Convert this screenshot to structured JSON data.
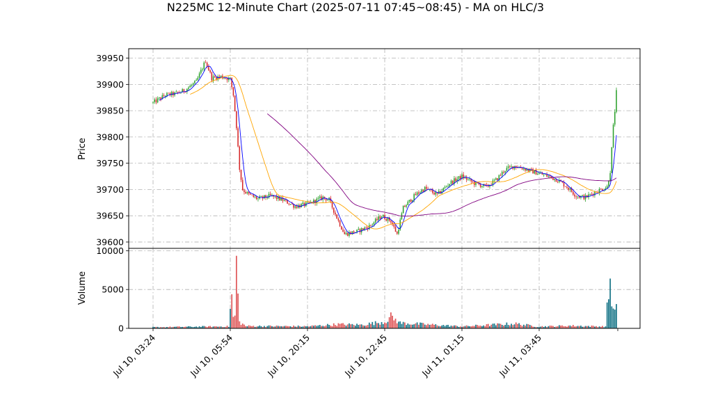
{
  "chart_data": {
    "type": "candlestick",
    "title": "N225MC 12-Minute Chart (2025-07-11 07:45~08:45) - MA on HLC/3",
    "price_panel": {
      "ylabel": "Price",
      "ylim": [
        39588,
        39968
      ],
      "yticks": [
        39600,
        39650,
        39700,
        39750,
        39800,
        39850,
        39900,
        39950
      ],
      "grid": true
    },
    "volume_panel": {
      "ylabel": "Volume",
      "ylim": [
        0,
        10300
      ],
      "yticks": [
        0,
        5000,
        10000
      ],
      "grid": true
    },
    "x_ticks": [
      {
        "index": 0,
        "label": "Jul 10, 03:24"
      },
      {
        "index": 50,
        "label": "Jul 10, 05:54"
      },
      {
        "index": 100,
        "label": "Jul 10, 20:15"
      },
      {
        "index": 150,
        "label": "Jul 10, 22:45"
      },
      {
        "index": 200,
        "label": "Jul 11, 01:15"
      },
      {
        "index": 250,
        "label": "Jul 11, 03:45"
      }
    ],
    "bar_count": 301,
    "up_color": "#2ca02c",
    "down_color": "#d62728",
    "volume_color": "#1f7a8c",
    "price_path": [
      [
        0,
        39865
      ],
      [
        8,
        39880
      ],
      [
        14,
        39882
      ],
      [
        20,
        39888
      ],
      [
        28,
        39905
      ],
      [
        34,
        39945
      ],
      [
        38,
        39912
      ],
      [
        44,
        39915
      ],
      [
        50,
        39910
      ],
      [
        52,
        39880
      ],
      [
        54,
        39820
      ],
      [
        56,
        39740
      ],
      [
        58,
        39700
      ],
      [
        62,
        39690
      ],
      [
        68,
        39682
      ],
      [
        76,
        39688
      ],
      [
        84,
        39680
      ],
      [
        92,
        39668
      ],
      [
        100,
        39672
      ],
      [
        110,
        39685
      ],
      [
        114,
        39680
      ],
      [
        120,
        39640
      ],
      [
        124,
        39615
      ],
      [
        132,
        39620
      ],
      [
        140,
        39630
      ],
      [
        148,
        39650
      ],
      [
        154,
        39640
      ],
      [
        158,
        39615
      ],
      [
        162,
        39665
      ],
      [
        170,
        39690
      ],
      [
        176,
        39702
      ],
      [
        184,
        39690
      ],
      [
        192,
        39712
      ],
      [
        200,
        39725
      ],
      [
        208,
        39712
      ],
      [
        216,
        39705
      ],
      [
        222,
        39718
      ],
      [
        228,
        39738
      ],
      [
        234,
        39745
      ],
      [
        240,
        39740
      ],
      [
        248,
        39732
      ],
      [
        256,
        39725
      ],
      [
        262,
        39718
      ],
      [
        268,
        39705
      ],
      [
        274,
        39688
      ],
      [
        280,
        39685
      ],
      [
        286,
        39695
      ],
      [
        290,
        39700
      ],
      [
        294,
        39705
      ],
      [
        296,
        39735
      ],
      [
        298,
        39820
      ],
      [
        299,
        39850
      ],
      [
        300,
        39885
      ]
    ],
    "volume_path": [
      [
        0,
        150
      ],
      [
        30,
        220
      ],
      [
        49,
        250
      ],
      [
        51,
        4300
      ],
      [
        52,
        1300
      ],
      [
        53,
        1500
      ],
      [
        54,
        9500
      ],
      [
        55,
        3800
      ],
      [
        56,
        800
      ],
      [
        60,
        300
      ],
      [
        100,
        260
      ],
      [
        120,
        520
      ],
      [
        135,
        450
      ],
      [
        150,
        850
      ],
      [
        154,
        1500
      ],
      [
        160,
        700
      ],
      [
        175,
        520
      ],
      [
        200,
        250
      ],
      [
        234,
        600
      ],
      [
        250,
        230
      ],
      [
        270,
        340
      ],
      [
        293,
        230
      ],
      [
        296,
        6800
      ],
      [
        297,
        2600
      ],
      [
        298,
        3900
      ],
      [
        299,
        1800
      ],
      [
        300,
        3900
      ]
    ],
    "series": [
      {
        "color": "#0000ff",
        "period": 5
      },
      {
        "color": "#ffa500",
        "period": 25
      },
      {
        "color": "#800080",
        "period": 75
      }
    ]
  }
}
